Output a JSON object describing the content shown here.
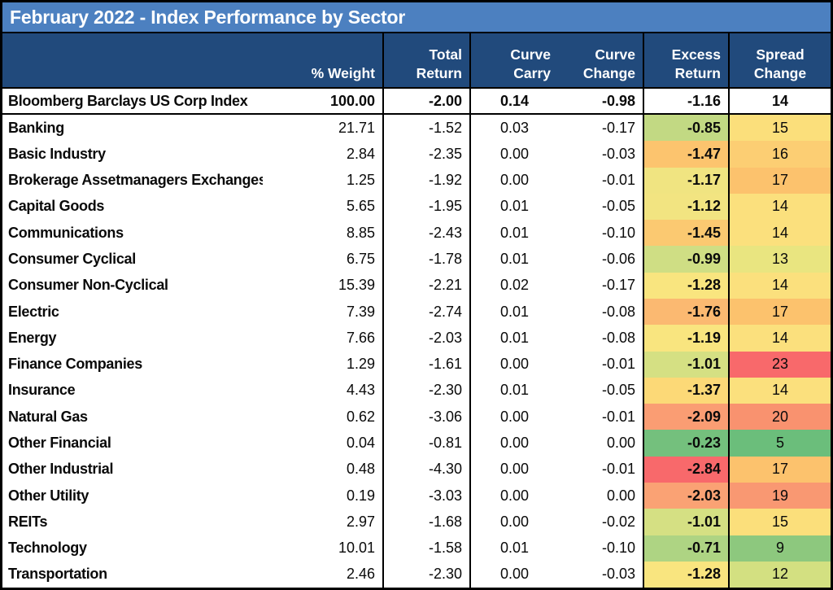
{
  "title": "February 2022 - Index Performance by Sector",
  "colors": {
    "title_bg": "#4C80C0",
    "title_text": "#FFFFFF",
    "header_bg": "#214A7C",
    "header_text": "#FFFFFF",
    "border": "#000000",
    "heat_scale_red": "#F8696B",
    "heat_scale_yellow": "#FFEB84",
    "heat_scale_green": "#63BE7B"
  },
  "chart_data": {
    "type": "table",
    "title": "February 2022 - Index Performance by Sector",
    "header": {
      "weight": "% Weight",
      "total": [
        "Total",
        "Return"
      ],
      "carry": [
        "Curve",
        "Carry"
      ],
      "change": [
        "Curve",
        "Change"
      ],
      "excess": [
        "Excess",
        "Return"
      ],
      "spread": [
        "Spread",
        "Change"
      ]
    },
    "index_row": {
      "name": "Bloomberg Barclays US Corp Index",
      "weight": "100.00",
      "total": "-2.00",
      "carry": "0.14",
      "change": "-0.98",
      "excess": "-1.16",
      "spread": "14"
    },
    "rows": [
      {
        "name": "Banking",
        "weight": "21.71",
        "total": "-1.52",
        "carry": "0.03",
        "change": "-0.17",
        "excess": "-0.85",
        "spread": "15",
        "excess_color": "#C2D983",
        "spread_color": "#FBDF7B"
      },
      {
        "name": "Basic Industry",
        "weight": "2.84",
        "total": "-2.35",
        "carry": "0.00",
        "change": "-0.03",
        "excess": "-1.47",
        "spread": "16",
        "excess_color": "#FCC46E",
        "spread_color": "#FCCE73"
      },
      {
        "name": "Brokerage Assetmanagers Exchanges",
        "weight": "1.25",
        "total": "-1.92",
        "carry": "0.00",
        "change": "-0.01",
        "excess": "-1.17",
        "spread": "17",
        "excess_color": "#F0E481",
        "spread_color": "#FCC26D"
      },
      {
        "name": "Capital Goods",
        "weight": "5.65",
        "total": "-1.95",
        "carry": "0.01",
        "change": "-0.05",
        "excess": "-1.12",
        "spread": "14",
        "excess_color": "#F2E481",
        "spread_color": "#FBE07D"
      },
      {
        "name": "Communications",
        "weight": "8.85",
        "total": "-2.43",
        "carry": "0.01",
        "change": "-0.10",
        "excess": "-1.45",
        "spread": "14",
        "excess_color": "#FBC971",
        "spread_color": "#FBE07D"
      },
      {
        "name": "Consumer Cyclical",
        "weight": "6.75",
        "total": "-1.78",
        "carry": "0.01",
        "change": "-0.06",
        "excess": "-0.99",
        "spread": "13",
        "excess_color": "#CFDE84",
        "spread_color": "#E9E580"
      },
      {
        "name": "Consumer Non-Cyclical",
        "weight": "15.39",
        "total": "-2.21",
        "carry": "0.02",
        "change": "-0.17",
        "excess": "-1.28",
        "spread": "14",
        "excess_color": "#F9E57F",
        "spread_color": "#FBE07D"
      },
      {
        "name": "Electric",
        "weight": "7.39",
        "total": "-2.74",
        "carry": "0.01",
        "change": "-0.08",
        "excess": "-1.76",
        "spread": "17",
        "excess_color": "#FBB971",
        "spread_color": "#FCC26D"
      },
      {
        "name": "Energy",
        "weight": "7.66",
        "total": "-2.03",
        "carry": "0.01",
        "change": "-0.08",
        "excess": "-1.19",
        "spread": "14",
        "excess_color": "#F9E57F",
        "spread_color": "#FBE07D"
      },
      {
        "name": "Finance Companies",
        "weight": "1.29",
        "total": "-1.61",
        "carry": "0.00",
        "change": "-0.01",
        "excess": "-1.01",
        "spread": "23",
        "excess_color": "#D5E083",
        "spread_color": "#F8696B"
      },
      {
        "name": "Insurance",
        "weight": "4.43",
        "total": "-2.30",
        "carry": "0.01",
        "change": "-0.05",
        "excess": "-1.37",
        "spread": "14",
        "excess_color": "#FCD977",
        "spread_color": "#FBE07D"
      },
      {
        "name": "Natural Gas",
        "weight": "0.62",
        "total": "-3.06",
        "carry": "0.00",
        "change": "-0.01",
        "excess": "-2.09",
        "spread": "20",
        "excess_color": "#FA9D73",
        "spread_color": "#F9926F"
      },
      {
        "name": "Other Financial",
        "weight": "0.04",
        "total": "-0.81",
        "carry": "0.00",
        "change": "0.00",
        "excess": "-0.23",
        "spread": "5",
        "excess_color": "#74C07D",
        "spread_color": "#6BBE7B"
      },
      {
        "name": "Other Industrial",
        "weight": "0.48",
        "total": "-4.30",
        "carry": "0.00",
        "change": "-0.01",
        "excess": "-2.84",
        "spread": "17",
        "excess_color": "#F8696B",
        "spread_color": "#FCC26D"
      },
      {
        "name": "Other Utility",
        "weight": "0.19",
        "total": "-3.03",
        "carry": "0.00",
        "change": "0.00",
        "excess": "-2.03",
        "spread": "19",
        "excess_color": "#FAA274",
        "spread_color": "#F99872"
      },
      {
        "name": "REITs",
        "weight": "2.97",
        "total": "-1.68",
        "carry": "0.00",
        "change": "-0.02",
        "excess": "-1.01",
        "spread": "15",
        "excess_color": "#D5E083",
        "spread_color": "#FBDF7B"
      },
      {
        "name": "Technology",
        "weight": "10.01",
        "total": "-1.58",
        "carry": "0.01",
        "change": "-0.10",
        "excess": "-0.71",
        "spread": "9",
        "excess_color": "#AED483",
        "spread_color": "#8DC87E"
      },
      {
        "name": "Transportation",
        "weight": "2.46",
        "total": "-2.30",
        "carry": "0.00",
        "change": "-0.03",
        "excess": "-1.28",
        "spread": "12",
        "excess_color": "#F9E57F",
        "spread_color": "#D3E081"
      }
    ]
  }
}
